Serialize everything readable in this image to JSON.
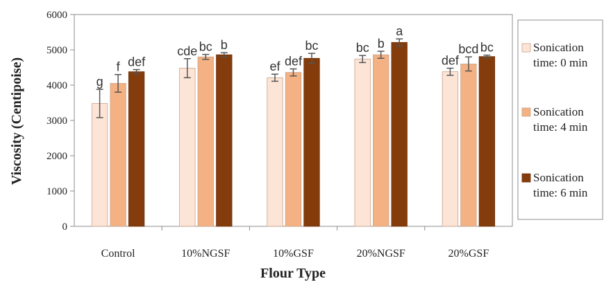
{
  "chart_data": {
    "type": "bar",
    "xlabel": "Flour Type",
    "ylabel": "Viscosity (Centipoise)",
    "ylim": [
      0,
      6000
    ],
    "yticks": [
      0,
      1000,
      2000,
      3000,
      4000,
      5000,
      6000
    ],
    "grid": false,
    "legend_position": "right",
    "categories": [
      "Control",
      "10%NGSF",
      "10%GSF",
      "20%NGSF",
      "20%GSF"
    ],
    "series": [
      {
        "name": "Sonication time: 0 min",
        "legend_lines": [
          "Sonication",
          "time: 0 min"
        ],
        "color": "#fce4d6",
        "values": [
          3480,
          4480,
          4210,
          4740,
          4380
        ],
        "errors": [
          400,
          270,
          100,
          100,
          100
        ],
        "letters": [
          "g",
          "cde",
          "ef",
          "bc",
          "def"
        ]
      },
      {
        "name": "Sonication time: 4 min",
        "legend_lines": [
          "Sonication",
          "time: 4 min"
        ],
        "color": "#f4b183",
        "values": [
          4050,
          4800,
          4360,
          4860,
          4600
        ],
        "errors": [
          250,
          70,
          100,
          100,
          200
        ],
        "letters": [
          "f",
          "bc",
          "def",
          "b",
          "bcd"
        ]
      },
      {
        "name": "Sonication time: 6 min",
        "legend_lines": [
          "Sonication",
          "time: 6 min"
        ],
        "color": "#843c0c",
        "values": [
          4380,
          4860,
          4760,
          5210,
          4810
        ],
        "errors": [
          60,
          60,
          140,
          100,
          40
        ],
        "letters": [
          "def",
          "b",
          "bc",
          "a",
          "bc"
        ]
      }
    ]
  }
}
